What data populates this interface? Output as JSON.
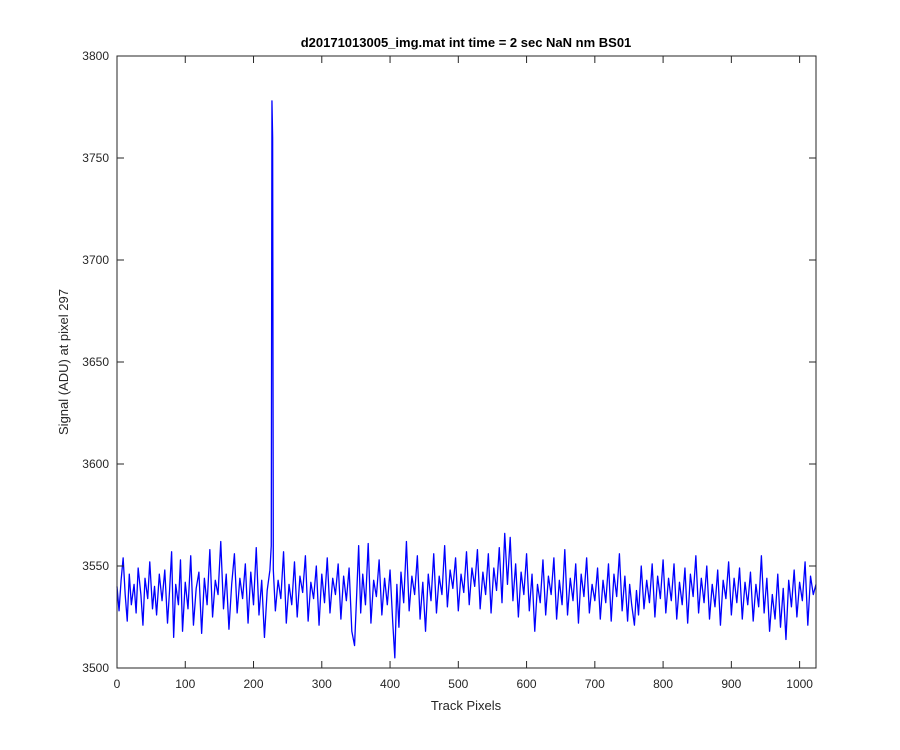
{
  "chart_data": {
    "type": "line",
    "title": "d20171013005_img.mat int time = 2 sec  NaN nm BS01",
    "xlabel": "Track Pixels",
    "ylabel": "Signal (ADU) at pixel 297",
    "xlim": [
      0,
      1024
    ],
    "ylim": [
      3500,
      3800
    ],
    "xticks": [
      0,
      100,
      200,
      300,
      400,
      500,
      600,
      700,
      800,
      900,
      1000
    ],
    "yticks": [
      3500,
      3550,
      3600,
      3650,
      3700,
      3750,
      3800
    ],
    "grid": false,
    "legend": "none",
    "color": "#0000ff",
    "series": [
      {
        "baseline": 3540,
        "noise_amplitude": 11,
        "points": [
          [
            0,
            3540
          ],
          [
            3,
            3528
          ],
          [
            6,
            3543
          ],
          [
            9,
            3554
          ],
          [
            12,
            3536
          ],
          [
            15,
            3523
          ],
          [
            18,
            3546
          ],
          [
            21,
            3531
          ],
          [
            25,
            3541
          ],
          [
            28,
            3527
          ],
          [
            31,
            3549
          ],
          [
            35,
            3536
          ],
          [
            38,
            3521
          ],
          [
            41,
            3544
          ],
          [
            45,
            3534
          ],
          [
            48,
            3552
          ],
          [
            52,
            3529
          ],
          [
            55,
            3540
          ],
          [
            58,
            3526
          ],
          [
            62,
            3546
          ],
          [
            66,
            3533
          ],
          [
            70,
            3548
          ],
          [
            74,
            3522
          ],
          [
            77,
            3538
          ],
          [
            80,
            3557
          ],
          [
            83,
            3515
          ],
          [
            86,
            3541
          ],
          [
            90,
            3531
          ],
          [
            93,
            3553
          ],
          [
            96,
            3518
          ],
          [
            100,
            3542
          ],
          [
            104,
            3529
          ],
          [
            108,
            3555
          ],
          [
            112,
            3521
          ],
          [
            116,
            3539
          ],
          [
            120,
            3547
          ],
          [
            124,
            3517
          ],
          [
            128,
            3544
          ],
          [
            132,
            3531
          ],
          [
            136,
            3558
          ],
          [
            140,
            3525
          ],
          [
            144,
            3543
          ],
          [
            148,
            3536
          ],
          [
            152,
            3562
          ],
          [
            156,
            3529
          ],
          [
            160,
            3546
          ],
          [
            164,
            3519
          ],
          [
            168,
            3541
          ],
          [
            172,
            3556
          ],
          [
            176,
            3527
          ],
          [
            180,
            3544
          ],
          [
            184,
            3534
          ],
          [
            188,
            3551
          ],
          [
            192,
            3522
          ],
          [
            196,
            3547
          ],
          [
            200,
            3531
          ],
          [
            204,
            3559
          ],
          [
            208,
            3526
          ],
          [
            212,
            3543
          ],
          [
            216,
            3515
          ],
          [
            220,
            3538
          ],
          [
            224,
            3548
          ],
          [
            226,
            3560
          ],
          [
            227,
            3778
          ],
          [
            228,
            3760
          ],
          [
            229,
            3548
          ],
          [
            232,
            3528
          ],
          [
            236,
            3543
          ],
          [
            240,
            3534
          ],
          [
            244,
            3557
          ],
          [
            248,
            3522
          ],
          [
            252,
            3541
          ],
          [
            256,
            3531
          ],
          [
            260,
            3552
          ],
          [
            264,
            3525
          ],
          [
            268,
            3545
          ],
          [
            272,
            3537
          ],
          [
            276,
            3555
          ],
          [
            280,
            3523
          ],
          [
            284,
            3542
          ],
          [
            288,
            3534
          ],
          [
            292,
            3550
          ],
          [
            296,
            3521
          ],
          [
            300,
            3546
          ],
          [
            304,
            3532
          ],
          [
            308,
            3554
          ],
          [
            312,
            3527
          ],
          [
            316,
            3544
          ],
          [
            320,
            3536
          ],
          [
            324,
            3551
          ],
          [
            328,
            3524
          ],
          [
            332,
            3545
          ],
          [
            336,
            3533
          ],
          [
            340,
            3549
          ],
          [
            344,
            3518
          ],
          [
            348,
            3511
          ],
          [
            351,
            3535
          ],
          [
            354,
            3560
          ],
          [
            357,
            3527
          ],
          [
            360,
            3546
          ],
          [
            364,
            3531
          ],
          [
            368,
            3561
          ],
          [
            372,
            3522
          ],
          [
            376,
            3543
          ],
          [
            380,
            3535
          ],
          [
            384,
            3553
          ],
          [
            388,
            3526
          ],
          [
            392,
            3544
          ],
          [
            396,
            3531
          ],
          [
            400,
            3548
          ],
          [
            404,
            3522
          ],
          [
            407,
            3505
          ],
          [
            410,
            3541
          ],
          [
            413,
            3520
          ],
          [
            416,
            3547
          ],
          [
            420,
            3532
          ],
          [
            424,
            3562
          ],
          [
            428,
            3528
          ],
          [
            432,
            3545
          ],
          [
            436,
            3536
          ],
          [
            440,
            3555
          ],
          [
            444,
            3524
          ],
          [
            448,
            3542
          ],
          [
            452,
            3518
          ],
          [
            456,
            3546
          ],
          [
            460,
            3533
          ],
          [
            464,
            3556
          ],
          [
            468,
            3527
          ],
          [
            472,
            3545
          ],
          [
            476,
            3536
          ],
          [
            480,
            3560
          ],
          [
            484,
            3530
          ],
          [
            488,
            3548
          ],
          [
            492,
            3539
          ],
          [
            496,
            3554
          ],
          [
            500,
            3528
          ],
          [
            504,
            3546
          ],
          [
            508,
            3537
          ],
          [
            512,
            3557
          ],
          [
            516,
            3531
          ],
          [
            520,
            3549
          ],
          [
            524,
            3540
          ],
          [
            528,
            3558
          ],
          [
            532,
            3529
          ],
          [
            536,
            3547
          ],
          [
            540,
            3536
          ],
          [
            544,
            3556
          ],
          [
            548,
            3527
          ],
          [
            552,
            3549
          ],
          [
            556,
            3538
          ],
          [
            560,
            3559
          ],
          [
            564,
            3532
          ],
          [
            568,
            3566
          ],
          [
            572,
            3541
          ],
          [
            576,
            3564
          ],
          [
            580,
            3533
          ],
          [
            584,
            3551
          ],
          [
            588,
            3525
          ],
          [
            592,
            3547
          ],
          [
            596,
            3536
          ],
          [
            600,
            3556
          ],
          [
            604,
            3528
          ],
          [
            608,
            3546
          ],
          [
            612,
            3518
          ],
          [
            616,
            3541
          ],
          [
            620,
            3532
          ],
          [
            624,
            3553
          ],
          [
            628,
            3526
          ],
          [
            632,
            3545
          ],
          [
            636,
            3536
          ],
          [
            640,
            3554
          ],
          [
            644,
            3524
          ],
          [
            648,
            3543
          ],
          [
            652,
            3531
          ],
          [
            656,
            3558
          ],
          [
            660,
            3526
          ],
          [
            664,
            3544
          ],
          [
            668,
            3533
          ],
          [
            672,
            3551
          ],
          [
            676,
            3522
          ],
          [
            680,
            3546
          ],
          [
            684,
            3535
          ],
          [
            688,
            3554
          ],
          [
            692,
            3527
          ],
          [
            696,
            3541
          ],
          [
            700,
            3533
          ],
          [
            704,
            3549
          ],
          [
            708,
            3524
          ],
          [
            712,
            3543
          ],
          [
            716,
            3532
          ],
          [
            720,
            3551
          ],
          [
            724,
            3523
          ],
          [
            728,
            3546
          ],
          [
            732,
            3535
          ],
          [
            736,
            3556
          ],
          [
            740,
            3528
          ],
          [
            744,
            3545
          ],
          [
            748,
            3523
          ],
          [
            751,
            3541
          ],
          [
            754,
            3531
          ],
          [
            758,
            3521
          ],
          [
            761,
            3538
          ],
          [
            764,
            3526
          ],
          [
            768,
            3550
          ],
          [
            772,
            3529
          ],
          [
            776,
            3543
          ],
          [
            780,
            3532
          ],
          [
            784,
            3551
          ],
          [
            788,
            3525
          ],
          [
            792,
            3545
          ],
          [
            796,
            3534
          ],
          [
            800,
            3553
          ],
          [
            804,
            3527
          ],
          [
            808,
            3544
          ],
          [
            812,
            3533
          ],
          [
            816,
            3551
          ],
          [
            820,
            3524
          ],
          [
            824,
            3542
          ],
          [
            828,
            3531
          ],
          [
            832,
            3549
          ],
          [
            836,
            3522
          ],
          [
            840,
            3546
          ],
          [
            844,
            3535
          ],
          [
            848,
            3555
          ],
          [
            852,
            3527
          ],
          [
            856,
            3544
          ],
          [
            860,
            3532
          ],
          [
            864,
            3550
          ],
          [
            868,
            3524
          ],
          [
            872,
            3541
          ],
          [
            876,
            3530
          ],
          [
            880,
            3548
          ],
          [
            884,
            3521
          ],
          [
            888,
            3543
          ],
          [
            892,
            3534
          ],
          [
            896,
            3552
          ],
          [
            900,
            3526
          ],
          [
            904,
            3544
          ],
          [
            908,
            3532
          ],
          [
            912,
            3549
          ],
          [
            916,
            3524
          ],
          [
            920,
            3542
          ],
          [
            924,
            3531
          ],
          [
            928,
            3547
          ],
          [
            932,
            3523
          ],
          [
            936,
            3541
          ],
          [
            940,
            3530
          ],
          [
            944,
            3555
          ],
          [
            948,
            3527
          ],
          [
            952,
            3544
          ],
          [
            956,
            3518
          ],
          [
            960,
            3536
          ],
          [
            964,
            3524
          ],
          [
            968,
            3546
          ],
          [
            972,
            3520
          ],
          [
            976,
            3539
          ],
          [
            980,
            3514
          ],
          [
            984,
            3543
          ],
          [
            988,
            3530
          ],
          [
            992,
            3548
          ],
          [
            996,
            3525
          ],
          [
            1000,
            3542
          ],
          [
            1004,
            3533
          ],
          [
            1008,
            3552
          ],
          [
            1012,
            3521
          ],
          [
            1016,
            3545
          ],
          [
            1020,
            3536
          ],
          [
            1024,
            3541
          ]
        ]
      }
    ]
  }
}
